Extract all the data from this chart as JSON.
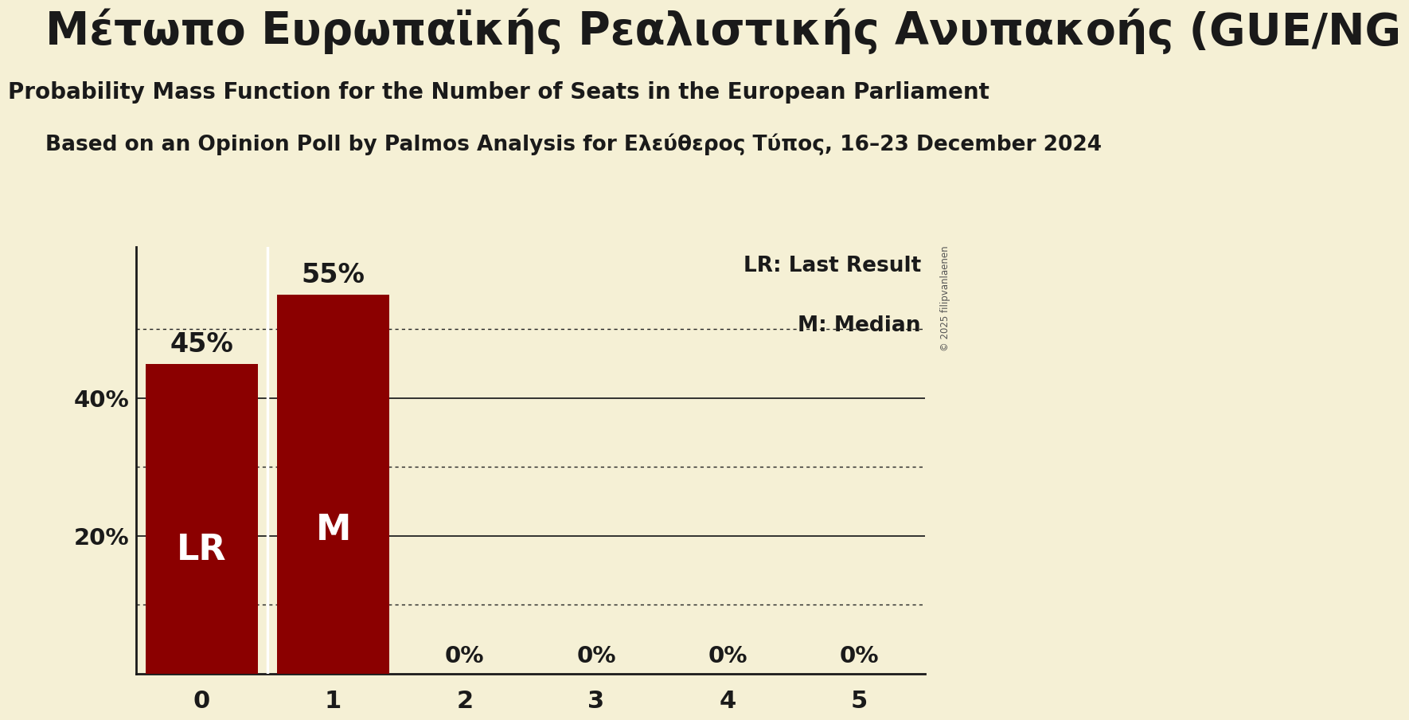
{
  "seats": [
    0,
    1,
    2,
    3,
    4,
    5
  ],
  "probabilities": [
    0.45,
    0.55,
    0.0,
    0.0,
    0.0,
    0.0
  ],
  "bar_color": "#8B0000",
  "background_color": "#F5F0D5",
  "title_main": "Μέτωπο Ευρωπαϊκής Ρεαλιστικής Ανυπακοής (GUE/NG",
  "subtitle1": "Probability Mass Function for the Number of Seats in the European Parliament",
  "subtitle2": "Based on an Opinion Poll by Palmos Analysis for Ελεύθερος Τύπος, 16–23 December 2024",
  "lr_bar": 0,
  "median_bar": 1,
  "lr_label": "LR",
  "median_label": "M",
  "legend_lr": "LR: Last Result",
  "legend_m": "M: Median",
  "solid_gridlines": [
    0.2,
    0.4
  ],
  "dotted_gridlines": [
    0.1,
    0.3,
    0.5
  ],
  "ylim": [
    0,
    0.62
  ],
  "text_color": "#1a1a1a",
  "copyright": "© 2025 filipvanlaenen"
}
